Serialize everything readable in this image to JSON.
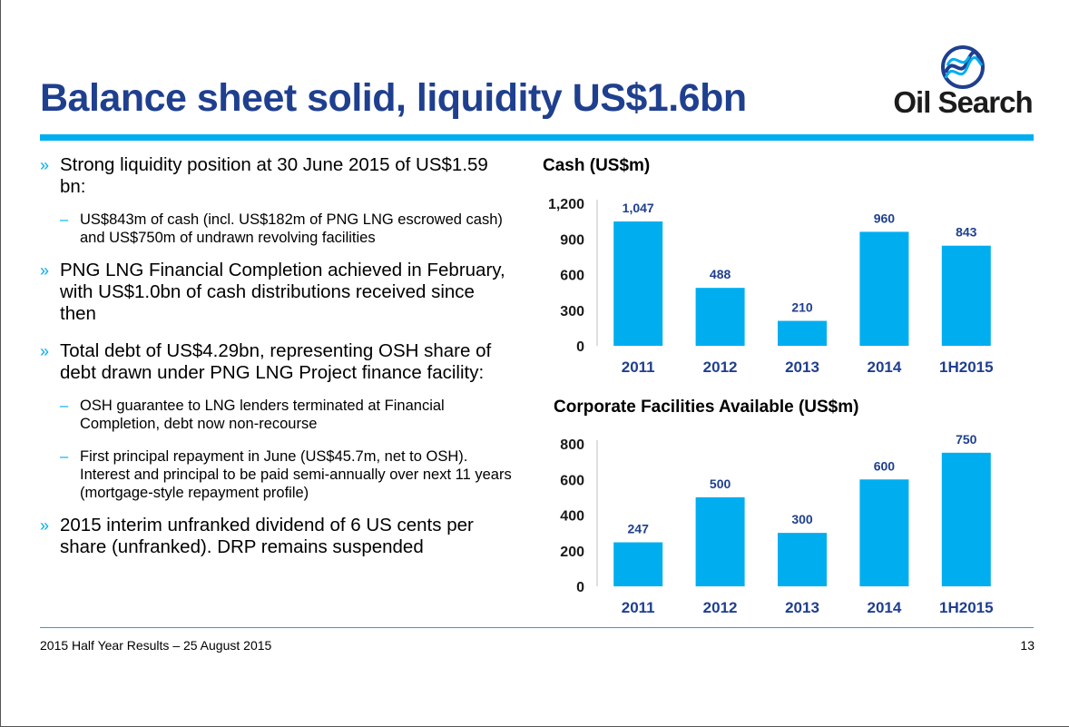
{
  "title": "Balance sheet solid, liquidity US$1.6bn",
  "logo": {
    "text": "Oil Search",
    "icon": "oil-search-logo-icon",
    "colors": [
      "#1f3f8f",
      "#00aeef"
    ]
  },
  "bullets": [
    {
      "level": 1,
      "text": "Strong liquidity position at 30 June 2015 of US$1.59 bn:"
    },
    {
      "level": 2,
      "text": "US$843m of cash (incl. US$182m of PNG LNG escrowed cash) and US$750m of undrawn revolving facilities"
    },
    {
      "level": 1,
      "text": "PNG LNG Financial Completion achieved in February, with US$1.0bn of cash distributions received since then"
    },
    {
      "level": 1,
      "text": "Total debt of US$4.29bn, representing OSH share of debt drawn under PNG LNG Project finance facility:"
    },
    {
      "level": 2,
      "text": "OSH guarantee to LNG lenders terminated at Financial Completion, debt now non-recourse"
    },
    {
      "level": 2,
      "text": "First principal repayment in June (US$45.7m, net to OSH). Interest and principal to be paid semi-annually over next 11 years (mortgage-style repayment profile)"
    },
    {
      "level": 1,
      "text": "2015 interim unfranked dividend of 6 US cents per share (unfranked). DRP remains suspended"
    }
  ],
  "markers": {
    "level1": "»",
    "level2": "–"
  },
  "footer": {
    "left": "2015 Half Year Results – 25 August 2015",
    "page": "13"
  },
  "colors": {
    "title": "#1f3f8f",
    "accent": "#00aeef",
    "bar": "#00aeef",
    "label": "#1f3f8f"
  },
  "chart_data": [
    {
      "type": "bar",
      "title": "Cash (US$m)",
      "categories": [
        "2011",
        "2012",
        "2013",
        "2014",
        "1H2015"
      ],
      "values": [
        1047,
        488,
        210,
        960,
        843
      ],
      "value_labels": [
        "1,047",
        "488",
        "210",
        "960",
        "843"
      ],
      "yticks": [
        "0",
        "300",
        "600",
        "900",
        "1,200"
      ],
      "ytick_values": [
        0,
        300,
        600,
        900,
        1200
      ],
      "ylim": [
        0,
        1200
      ],
      "grid": false
    },
    {
      "type": "bar",
      "title": "Corporate Facilities Available (US$m)",
      "categories": [
        "2011",
        "2012",
        "2013",
        "2014",
        "1H2015"
      ],
      "values": [
        247,
        500,
        300,
        600,
        750
      ],
      "value_labels": [
        "247",
        "500",
        "300",
        "600",
        "750"
      ],
      "yticks": [
        "0",
        "200",
        "400",
        "600",
        "800"
      ],
      "ytick_values": [
        0,
        200,
        400,
        600,
        800
      ],
      "ylim": [
        0,
        800
      ],
      "grid": false
    }
  ]
}
